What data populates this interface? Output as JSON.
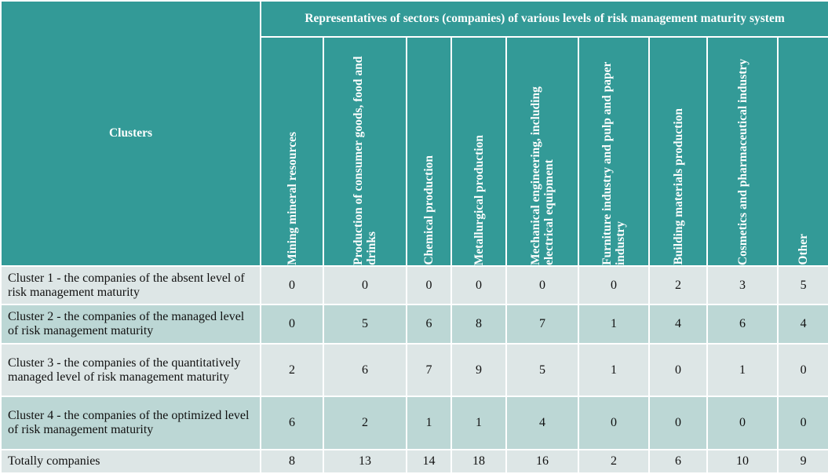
{
  "header": {
    "group_title": "Representatives of sectors (companies) of various levels of risk management maturity system",
    "clusters_label": "Clusters",
    "sectors": [
      "Mining mineral resources",
      "Production of consumer goods, food and drinks",
      "Chemical production",
      "Metallurgical production",
      "Mechanical engineering, including electrical equipment",
      "Furniture industry and pulp and paper industry",
      "Building materials production",
      "Cosmetics and pharmaceutical industry",
      "Other"
    ]
  },
  "rows": [
    {
      "label": "Cluster 1 - the companies of the absent level of risk management maturity",
      "values": [
        "0",
        "0",
        "0",
        "0",
        "0",
        "0",
        "2",
        "3",
        "5"
      ]
    },
    {
      "label": "Cluster 2 - the companies of the managed level of risk management maturity",
      "values": [
        "0",
        "5",
        "6",
        "8",
        "7",
        "1",
        "4",
        "6",
        "4"
      ]
    },
    {
      "label": "Cluster 3 - the companies of the quantitatively managed level of risk management maturity",
      "values": [
        "2",
        "6",
        "7",
        "9",
        "5",
        "1",
        "0",
        "1",
        "0"
      ]
    },
    {
      "label": "Cluster 4 - the companies of the optimized level of risk management maturity",
      "values": [
        "6",
        "2",
        "1",
        "1",
        "4",
        "0",
        "0",
        "0",
        "0"
      ]
    }
  ],
  "totals": {
    "label": "Totally companies",
    "values": [
      "8",
      "13",
      "14",
      "18",
      "16",
      "2",
      "6",
      "10",
      "9"
    ]
  }
}
